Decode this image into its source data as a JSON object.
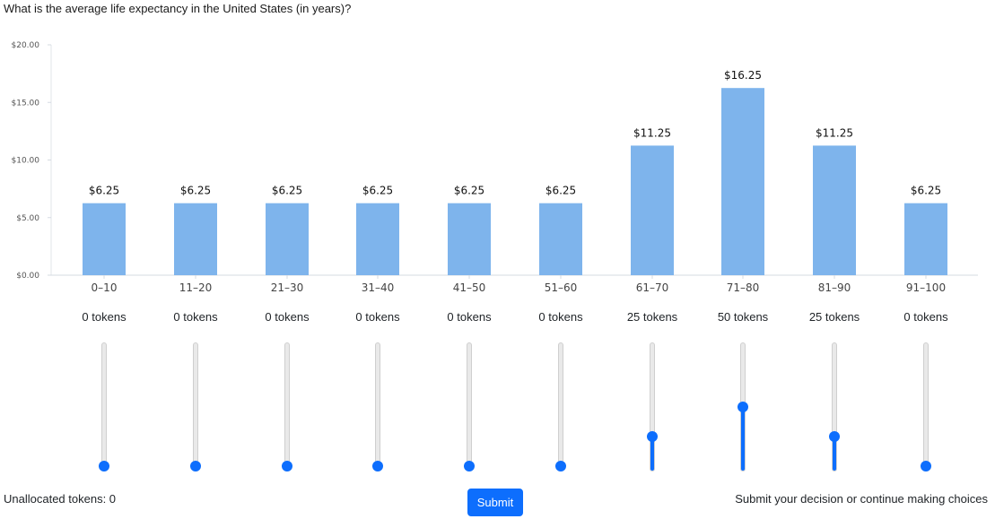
{
  "question": "What is the average life expectancy in the United States (in years)?",
  "chart_data": {
    "type": "bar",
    "categories": [
      "0–10",
      "11–20",
      "21–30",
      "31–40",
      "41–50",
      "51–60",
      "61–70",
      "71–80",
      "81–90",
      "91–100"
    ],
    "values": [
      6.25,
      6.25,
      6.25,
      6.25,
      6.25,
      6.25,
      11.25,
      16.25,
      11.25,
      6.25
    ],
    "value_labels": [
      "$6.25",
      "$6.25",
      "$6.25",
      "$6.25",
      "$6.25",
      "$6.25",
      "$11.25",
      "$16.25",
      "$11.25",
      "$6.25"
    ],
    "yticks": [
      0,
      5,
      10,
      15,
      20
    ],
    "ytick_labels": [
      "$0.00",
      "$5.00",
      "$10.00",
      "$15.00",
      "$20.00"
    ],
    "ylim": [
      0,
      20
    ],
    "bar_color": "#7eb4ec",
    "grid": false
  },
  "allocation": {
    "tokens": [
      0,
      0,
      0,
      0,
      0,
      0,
      25,
      50,
      25,
      0
    ],
    "token_labels": [
      "0 tokens",
      "0 tokens",
      "0 tokens",
      "0 tokens",
      "0 tokens",
      "0 tokens",
      "25 tokens",
      "50 tokens",
      "25 tokens",
      "0 tokens"
    ],
    "max_tokens": 100,
    "slider_color": "#0d6efd"
  },
  "footer": {
    "unallocated_label": "Unallocated tokens: 0",
    "submit_label": "Submit",
    "status_text": "Submit your decision or continue making choices"
  }
}
